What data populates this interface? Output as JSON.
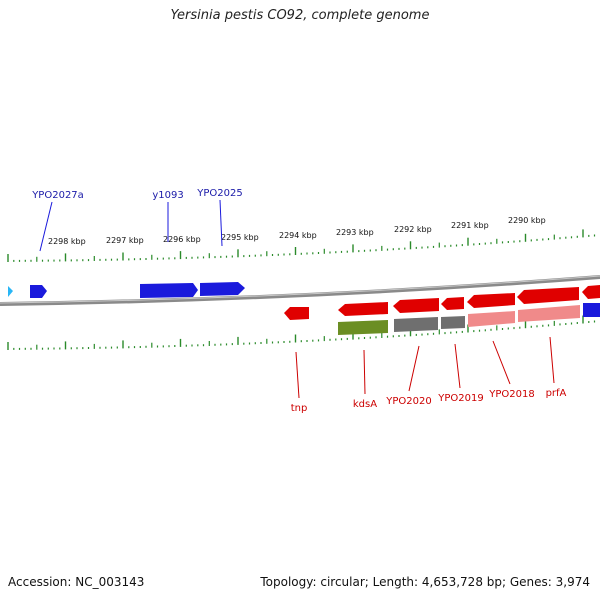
{
  "title": "Yersinia pestis CO92, complete genome",
  "footer": {
    "accession": "Accession: NC_003143",
    "summary": "Topology: circular; Length: 4,653,728 bp; Genes: 3,974"
  },
  "ruler": {
    "ticks": [
      "2298 kbp",
      "2297 kbp",
      "2296 kbp",
      "2295 kbp",
      "2294 kbp",
      "2293 kbp",
      "2292 kbp",
      "2291 kbp",
      "2290 kbp"
    ]
  },
  "forward_labels": [
    "YPO2027a",
    "y1093",
    "YPO2025"
  ],
  "reverse_labels": [
    "tnp",
    "kdsA",
    "YPO2020",
    "YPO2019",
    "YPO2018",
    "prfA"
  ],
  "colors": {
    "forward": "#1a1adc",
    "reverse": "#e00000",
    "tick": "#2a8a2a",
    "backbone": "#8a8a8a",
    "olive": "#6b8e23",
    "gray": "#6f6f6f",
    "pink": "#f08a8a"
  }
}
